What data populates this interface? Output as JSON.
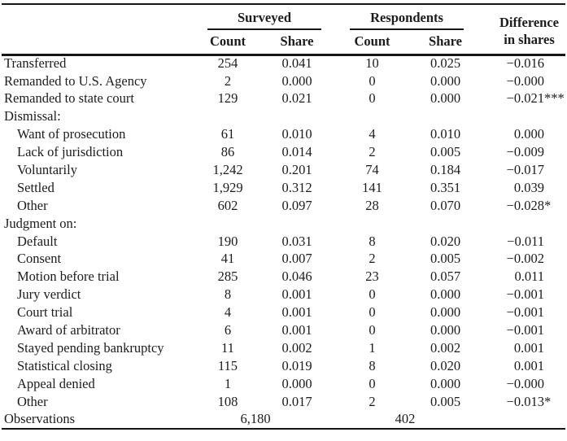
{
  "header": {
    "groups": [
      {
        "label": "Surveyed",
        "sub": [
          "Count",
          "Share"
        ]
      },
      {
        "label": "Respondents",
        "sub": [
          "Count",
          "Share"
        ]
      }
    ],
    "diff": {
      "line1": "Difference",
      "line2": "in shares"
    }
  },
  "rows": [
    {
      "label": "Transferred",
      "indent": false,
      "section": false,
      "cells": [
        "254",
        "0.041",
        "10",
        "0.025"
      ],
      "diff": "−0.016",
      "stars": ""
    },
    {
      "label": "Remanded to U.S. Agency",
      "indent": false,
      "section": false,
      "cells": [
        "2",
        "0.000",
        "0",
        "0.000"
      ],
      "diff": "−0.000",
      "stars": ""
    },
    {
      "label": "Remanded to state court",
      "indent": false,
      "section": false,
      "cells": [
        "129",
        "0.021",
        "0",
        "0.000"
      ],
      "diff": "−0.021",
      "stars": "***"
    },
    {
      "label": "Dismissal:",
      "indent": false,
      "section": true
    },
    {
      "label": "Want of prosecution",
      "indent": true,
      "section": false,
      "cells": [
        "61",
        "0.010",
        "4",
        "0.010"
      ],
      "diff": "0.000",
      "stars": ""
    },
    {
      "label": "Lack of jurisdiction",
      "indent": true,
      "section": false,
      "cells": [
        "86",
        "0.014",
        "2",
        "0.005"
      ],
      "diff": "−0.009",
      "stars": ""
    },
    {
      "label": "Voluntarily",
      "indent": true,
      "section": false,
      "cells": [
        "1,242",
        "0.201",
        "74",
        "0.184"
      ],
      "diff": "−0.017",
      "stars": ""
    },
    {
      "label": "Settled",
      "indent": true,
      "section": false,
      "cells": [
        "1,929",
        "0.312",
        "141",
        "0.351"
      ],
      "diff": "0.039",
      "stars": ""
    },
    {
      "label": "Other",
      "indent": true,
      "section": false,
      "cells": [
        "602",
        "0.097",
        "28",
        "0.070"
      ],
      "diff": "−0.028",
      "stars": "*"
    },
    {
      "label": "Judgment on:",
      "indent": false,
      "section": true
    },
    {
      "label": "Default",
      "indent": true,
      "section": false,
      "cells": [
        "190",
        "0.031",
        "8",
        "0.020"
      ],
      "diff": "−0.011",
      "stars": ""
    },
    {
      "label": "Consent",
      "indent": true,
      "section": false,
      "cells": [
        "41",
        "0.007",
        "2",
        "0.005"
      ],
      "diff": "−0.002",
      "stars": ""
    },
    {
      "label": "Motion before trial",
      "indent": true,
      "section": false,
      "cells": [
        "285",
        "0.046",
        "23",
        "0.057"
      ],
      "diff": "0.011",
      "stars": ""
    },
    {
      "label": "Jury verdict",
      "indent": true,
      "section": false,
      "cells": [
        "8",
        "0.001",
        "0",
        "0.000"
      ],
      "diff": "−0.001",
      "stars": ""
    },
    {
      "label": "Court trial",
      "indent": true,
      "section": false,
      "cells": [
        "4",
        "0.001",
        "0",
        "0.000"
      ],
      "diff": "−0.001",
      "stars": ""
    },
    {
      "label": "Award of arbitrator",
      "indent": true,
      "section": false,
      "cells": [
        "6",
        "0.001",
        "0",
        "0.000"
      ],
      "diff": "−0.001",
      "stars": ""
    },
    {
      "label": "Stayed pending bankruptcy",
      "indent": true,
      "section": false,
      "cells": [
        "11",
        "0.002",
        "1",
        "0.002"
      ],
      "diff": "0.001",
      "stars": ""
    },
    {
      "label": "Statistical closing",
      "indent": true,
      "section": false,
      "cells": [
        "115",
        "0.019",
        "8",
        "0.020"
      ],
      "diff": "0.001",
      "stars": ""
    },
    {
      "label": "Appeal denied",
      "indent": true,
      "section": false,
      "cells": [
        "1",
        "0.000",
        "0",
        "0.000"
      ],
      "diff": "−0.000",
      "stars": ""
    },
    {
      "label": "Other",
      "indent": true,
      "section": false,
      "cells": [
        "108",
        "0.017",
        "2",
        "0.005"
      ],
      "diff": "−0.013",
      "stars": "*"
    }
  ],
  "observations": {
    "label": "Observations",
    "surveyed": "6,180",
    "respondents": "402"
  },
  "colors": {
    "text": "#1c1c1c",
    "rule": "#161616",
    "background": "#ffffff"
  }
}
